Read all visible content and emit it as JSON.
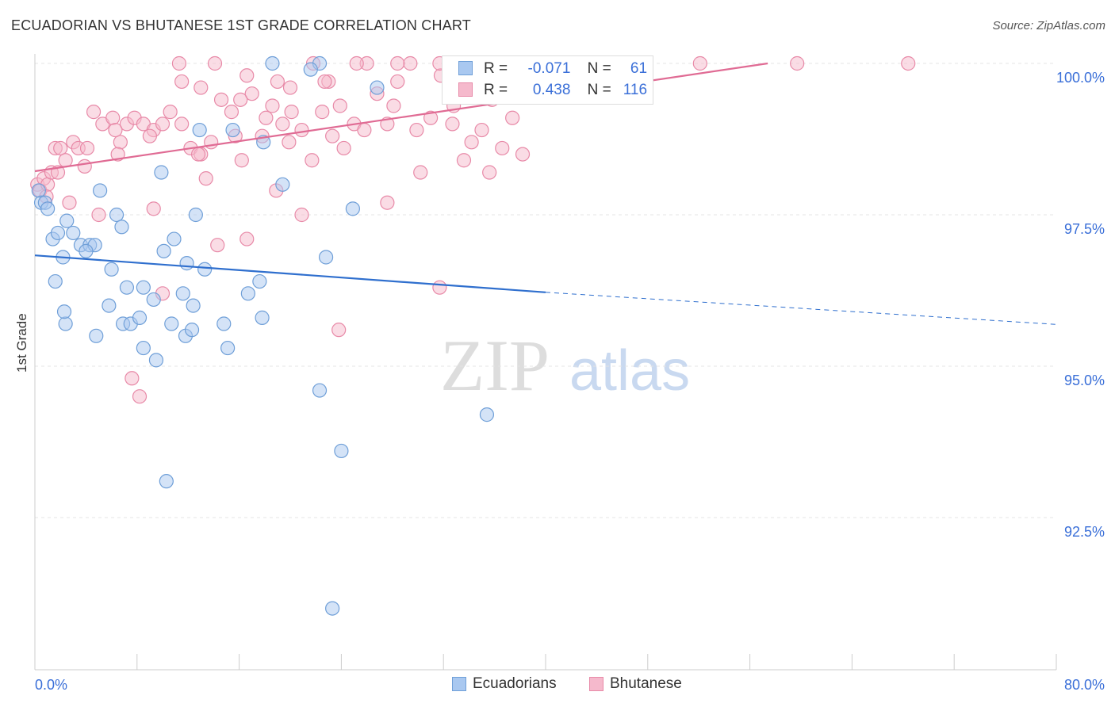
{
  "header": {
    "title": "ECUADORIAN VS BHUTANESE 1ST GRADE CORRELATION CHART",
    "source": "Source: ZipAtlas.com"
  },
  "watermark": {
    "zip": "ZIP",
    "atlas": "atlas"
  },
  "stats": {
    "r_label": "R =",
    "n_label": "N =",
    "ecuadorians": {
      "r": "-0.071",
      "n": "61"
    },
    "bhutanese": {
      "r": "0.438",
      "n": "116"
    }
  },
  "legend": {
    "ecuadorians": "Ecuadorians",
    "bhutanese": "Bhutanese"
  },
  "colors": {
    "ecuadorians_fill": "#a9c8f0",
    "ecuadorians_stroke": "#6f9fd8",
    "ecuadorians_line": "#2f6fce",
    "bhutanese_fill": "#f5b9cc",
    "bhutanese_stroke": "#e88aa8",
    "bhutanese_line": "#e06b94",
    "tick_label": "#3a6fd8",
    "grid": "#e4e4e4"
  },
  "chart_data": {
    "type": "scatter",
    "title": "ECUADORIAN VS BHUTANESE 1ST GRADE CORRELATION CHART",
    "xlabel": "",
    "ylabel": "1st Grade",
    "xlim": [
      0,
      80
    ],
    "ylim": [
      90.2,
      100.4
    ],
    "x_tick_labels": [
      {
        "value": 0,
        "label": "0.0%"
      },
      {
        "value": 80,
        "label": "80.0%"
      }
    ],
    "y_tick_labels": [
      {
        "value": 100,
        "label": "100.0%"
      },
      {
        "value": 97.5,
        "label": "97.5%"
      },
      {
        "value": 95,
        "label": "95.0%"
      },
      {
        "value": 92.5,
        "label": "92.5%"
      }
    ],
    "grid": "horizontal dashed",
    "legend_position": "bottom-center",
    "series": [
      {
        "name": "Ecuadorians",
        "points": [
          [
            0.3,
            97.9
          ],
          [
            0.5,
            97.7
          ],
          [
            0.8,
            97.7
          ],
          [
            1.0,
            97.6
          ],
          [
            1.4,
            97.1
          ],
          [
            1.8,
            97.2
          ],
          [
            2.5,
            97.4
          ],
          [
            3.6,
            97.0
          ],
          [
            4.3,
            97.0
          ],
          [
            5.1,
            97.9
          ],
          [
            6.4,
            97.5
          ],
          [
            6.8,
            97.3
          ],
          [
            8.5,
            96.3
          ],
          [
            9.9,
            98.2
          ],
          [
            10.1,
            96.9
          ],
          [
            10.9,
            97.1
          ],
          [
            11.9,
            96.7
          ],
          [
            12.6,
            97.5
          ],
          [
            13.3,
            96.6
          ],
          [
            16.7,
            96.2
          ],
          [
            17.6,
            96.4
          ],
          [
            22.8,
            96.8
          ],
          [
            24.9,
            97.6
          ],
          [
            19.4,
            98.0
          ],
          [
            2.4,
            95.7
          ],
          [
            4.8,
            95.5
          ],
          [
            6.9,
            95.7
          ],
          [
            7.5,
            95.7
          ],
          [
            8.5,
            95.3
          ],
          [
            9.5,
            95.1
          ],
          [
            10.7,
            95.7
          ],
          [
            11.8,
            95.5
          ],
          [
            12.3,
            95.6
          ],
          [
            14.8,
            95.7
          ],
          [
            15.1,
            95.3
          ],
          [
            17.8,
            95.8
          ],
          [
            22.3,
            94.6
          ],
          [
            35.4,
            94.2
          ],
          [
            24.0,
            93.6
          ],
          [
            10.3,
            93.1
          ],
          [
            23.3,
            91.0
          ],
          [
            18.6,
            100.0
          ],
          [
            22.3,
            100.0
          ],
          [
            21.6,
            99.9
          ],
          [
            26.8,
            99.6
          ],
          [
            12.9,
            98.9
          ],
          [
            15.5,
            98.9
          ],
          [
            17.9,
            98.7
          ],
          [
            2.3,
            95.9
          ],
          [
            5.8,
            96.0
          ],
          [
            7.2,
            96.3
          ],
          [
            9.3,
            96.1
          ],
          [
            11.6,
            96.2
          ],
          [
            6.0,
            96.6
          ],
          [
            4.7,
            97.0
          ],
          [
            3.0,
            97.2
          ],
          [
            1.6,
            96.4
          ],
          [
            2.2,
            96.8
          ],
          [
            4.0,
            96.9
          ],
          [
            12.4,
            96.0
          ],
          [
            8.2,
            95.8
          ]
        ]
      },
      {
        "name": "Bhutanese",
        "points": [
          [
            0.2,
            98.0
          ],
          [
            0.4,
            97.9
          ],
          [
            0.7,
            98.1
          ],
          [
            1.0,
            98.0
          ],
          [
            1.3,
            98.2
          ],
          [
            1.6,
            98.6
          ],
          [
            2.0,
            98.6
          ],
          [
            2.4,
            98.4
          ],
          [
            3.0,
            98.7
          ],
          [
            3.9,
            98.3
          ],
          [
            4.6,
            99.2
          ],
          [
            5.3,
            99.0
          ],
          [
            6.1,
            99.1
          ],
          [
            6.7,
            98.7
          ],
          [
            7.2,
            99.0
          ],
          [
            7.8,
            99.1
          ],
          [
            8.5,
            99.0
          ],
          [
            9.3,
            98.9
          ],
          [
            10.0,
            99.0
          ],
          [
            10.6,
            99.2
          ],
          [
            11.5,
            99.0
          ],
          [
            12.2,
            98.6
          ],
          [
            13.0,
            98.5
          ],
          [
            13.8,
            98.7
          ],
          [
            14.6,
            99.4
          ],
          [
            15.4,
            99.2
          ],
          [
            16.2,
            98.4
          ],
          [
            17.0,
            99.5
          ],
          [
            17.8,
            98.8
          ],
          [
            18.6,
            99.3
          ],
          [
            19.4,
            99.0
          ],
          [
            20.1,
            99.2
          ],
          [
            20.9,
            98.9
          ],
          [
            21.7,
            98.4
          ],
          [
            22.5,
            99.2
          ],
          [
            23.3,
            98.8
          ],
          [
            24.2,
            98.6
          ],
          [
            25.0,
            99.0
          ],
          [
            26.0,
            100.0
          ],
          [
            26.8,
            99.5
          ],
          [
            27.6,
            99.0
          ],
          [
            28.4,
            99.7
          ],
          [
            29.4,
            100.0
          ],
          [
            30.2,
            98.2
          ],
          [
            31.0,
            99.1
          ],
          [
            31.8,
            99.8
          ],
          [
            32.6,
            99.5
          ],
          [
            33.4,
            100.0
          ],
          [
            34.2,
            98.7
          ],
          [
            35.0,
            98.9
          ],
          [
            35.8,
            99.4
          ],
          [
            36.6,
            98.6
          ],
          [
            37.4,
            99.1
          ],
          [
            38.2,
            99.7
          ],
          [
            39.0,
            100.0
          ],
          [
            40.0,
            99.8
          ],
          [
            42.4,
            100.0
          ],
          [
            44.0,
            100.0
          ],
          [
            52.1,
            100.0
          ],
          [
            59.7,
            100.0
          ],
          [
            68.4,
            100.0
          ],
          [
            3.4,
            98.6
          ],
          [
            2.7,
            97.7
          ],
          [
            5.0,
            97.5
          ],
          [
            7.6,
            94.8
          ],
          [
            8.2,
            94.5
          ],
          [
            9.3,
            97.6
          ],
          [
            10.0,
            96.2
          ],
          [
            13.4,
            98.1
          ],
          [
            14.3,
            97.0
          ],
          [
            16.6,
            97.1
          ],
          [
            18.9,
            97.9
          ],
          [
            20.9,
            97.5
          ],
          [
            23.8,
            95.6
          ],
          [
            27.6,
            97.7
          ],
          [
            31.7,
            96.3
          ],
          [
            11.3,
            100.0
          ],
          [
            14.1,
            100.0
          ],
          [
            16.6,
            99.8
          ],
          [
            19.0,
            99.7
          ],
          [
            21.8,
            100.0
          ],
          [
            23.0,
            99.7
          ],
          [
            25.2,
            100.0
          ],
          [
            28.4,
            100.0
          ],
          [
            31.7,
            100.0
          ],
          [
            34.8,
            100.0
          ],
          [
            36.6,
            99.9
          ],
          [
            40.5,
            99.9
          ],
          [
            45.5,
            99.9
          ],
          [
            11.5,
            99.7
          ],
          [
            13.0,
            99.6
          ],
          [
            16.1,
            99.4
          ],
          [
            18.1,
            99.1
          ],
          [
            20.0,
            99.6
          ],
          [
            23.9,
            99.3
          ],
          [
            28.1,
            99.3
          ],
          [
            32.8,
            99.3
          ],
          [
            37.8,
            99.5
          ],
          [
            41.7,
            99.8
          ],
          [
            6.3,
            98.9
          ],
          [
            9.0,
            98.8
          ],
          [
            12.8,
            98.5
          ],
          [
            15.7,
            98.8
          ],
          [
            19.9,
            98.7
          ],
          [
            25.8,
            98.9
          ],
          [
            33.6,
            98.4
          ],
          [
            35.6,
            98.2
          ],
          [
            38.2,
            98.5
          ],
          [
            0.9,
            97.8
          ],
          [
            1.8,
            98.2
          ],
          [
            4.1,
            98.6
          ],
          [
            6.5,
            98.5
          ],
          [
            29.9,
            98.9
          ],
          [
            32.7,
            99.0
          ],
          [
            22.7,
            99.7
          ],
          [
            43.5,
            99.8
          ]
        ]
      }
    ],
    "trendlines": [
      {
        "series": "Ecuadorians",
        "from": [
          0,
          96.83
        ],
        "to": [
          40,
          96.22
        ],
        "dashed_to": [
          80,
          95.69
        ]
      },
      {
        "series": "Bhutanese",
        "from": [
          0,
          98.22
        ],
        "to": [
          57.4,
          100.0
        ]
      }
    ]
  }
}
